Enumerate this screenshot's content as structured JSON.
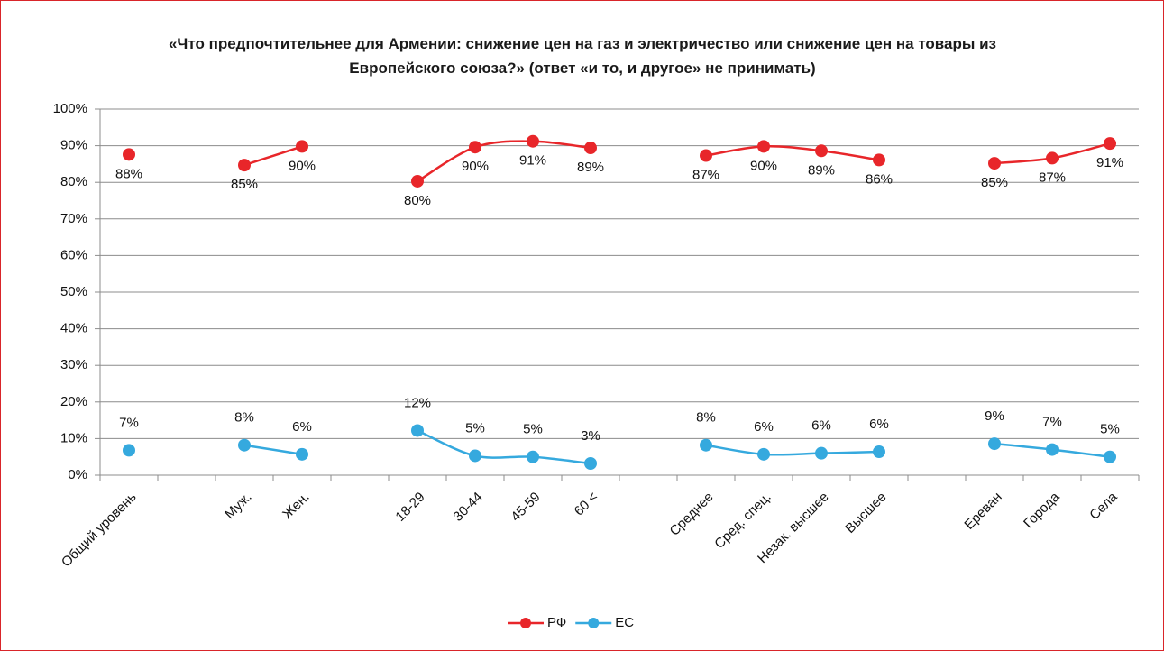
{
  "chart_data": {
    "type": "line",
    "title": "«Что предпочтительнее для Армении: снижение цен на газ и электричество или снижение цен на товары из Европейского союза?» (ответ «и то, и другое» не принимать)",
    "categories": [
      "Общий уровень",
      null,
      "Муж.",
      "Жен.",
      null,
      "18-29",
      "30-44",
      "45-59",
      "60 <",
      null,
      "Среднее",
      "Сред. спец.",
      "Незак. высшее",
      "Высшее",
      null,
      "Ереван",
      "Города",
      "Села"
    ],
    "series": [
      {
        "name": "РФ",
        "color": "#e8262a",
        "values": [
          87.6,
          null,
          84.7,
          89.8,
          null,
          80.3,
          89.6,
          91.2,
          89.4,
          null,
          87.3,
          89.8,
          88.6,
          86.1,
          null,
          85.2,
          86.6,
          90.6
        ],
        "value_labels": [
          "88%",
          null,
          "85%",
          "90%",
          null,
          "80%",
          "90%",
          "91%",
          "89%",
          null,
          "87%",
          "90%",
          "89%",
          "86%",
          null,
          "85%",
          "87%",
          "91%"
        ]
      },
      {
        "name": "ЕС",
        "color": "#35a9de",
        "values": [
          6.8,
          null,
          8.2,
          5.7,
          null,
          12.2,
          5.3,
          5.0,
          3.2,
          null,
          8.2,
          5.7,
          6.0,
          6.4,
          null,
          8.6,
          7.0,
          5.0
        ],
        "value_labels": [
          "7%",
          null,
          "8%",
          "6%",
          null,
          "12%",
          "5%",
          "5%",
          "3%",
          null,
          "8%",
          "6%",
          "6%",
          "6%",
          null,
          "9%",
          "7%",
          "5%"
        ]
      }
    ],
    "ylim": [
      0,
      100
    ],
    "yticks": [
      {
        "value": 0,
        "label": "0%"
      },
      {
        "value": 10,
        "label": "10%"
      },
      {
        "value": 20,
        "label": "20%"
      },
      {
        "value": 30,
        "label": "30%"
      },
      {
        "value": 40,
        "label": "40%"
      },
      {
        "value": 50,
        "label": "50%"
      },
      {
        "value": 60,
        "label": "60%"
      },
      {
        "value": 70,
        "label": "70%"
      },
      {
        "value": 80,
        "label": "80%"
      },
      {
        "value": 90,
        "label": "90%"
      },
      {
        "value": 100,
        "label": "100%"
      }
    ],
    "grid": true,
    "legend": "bottom"
  }
}
